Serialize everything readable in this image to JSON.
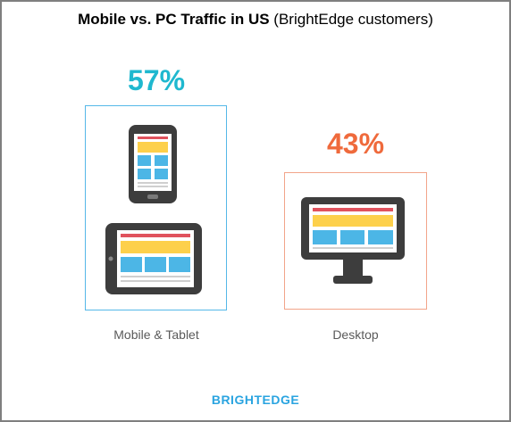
{
  "chart_data": {
    "type": "bar",
    "title": "Mobile vs. PC Traffic in US",
    "subtitle": "(BrightEdge customers)",
    "categories": [
      "Mobile & Tablet",
      "Desktop"
    ],
    "values": [
      57,
      43
    ],
    "value_labels": [
      "57%",
      "43%"
    ],
    "unit": "%",
    "colors": {
      "mobile": "#1fb8cf",
      "desktop": "#ef6a3c",
      "mobile_box": "#55b8e8",
      "desktop_box": "#f2a58a"
    }
  },
  "icons": [
    "smartphone-icon",
    "tablet-icon",
    "desktop-monitor-icon"
  ],
  "brand": {
    "text": "BRIGHTEDGE",
    "color": "#2aa4e0"
  }
}
